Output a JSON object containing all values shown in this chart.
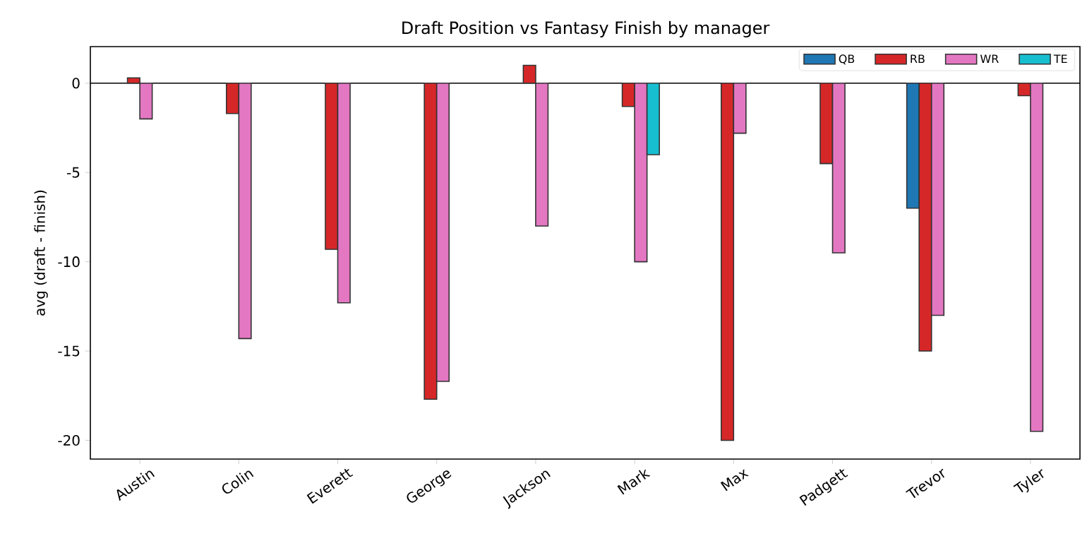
{
  "chart_data": {
    "type": "bar",
    "title": "Draft Position vs Fantasy Finish by manager",
    "ylabel": "avg (draft - finish)",
    "categories": [
      "Austin",
      "Colin",
      "Everett",
      "George",
      "Jackson",
      "Mark",
      "Max",
      "Padgett",
      "Trevor",
      "Tyler"
    ],
    "series": [
      {
        "name": "QB",
        "color": "#1f77b4",
        "values": [
          null,
          null,
          null,
          null,
          null,
          null,
          null,
          null,
          -7,
          null
        ]
      },
      {
        "name": "RB",
        "color": "#d62728",
        "values": [
          0.3,
          -1.7,
          -9.3,
          -17.7,
          1.0,
          -1.3,
          -20,
          -4.5,
          -15,
          -0.7
        ]
      },
      {
        "name": "WR",
        "color": "#e377c2",
        "values": [
          -2,
          -14.3,
          -12.3,
          -16.7,
          -8,
          -10,
          -2.8,
          -9.5,
          -13,
          -19.5
        ]
      },
      {
        "name": "TE",
        "color": "#17becf",
        "values": [
          null,
          null,
          null,
          null,
          null,
          -4,
          null,
          null,
          null,
          null
        ]
      }
    ],
    "ylim": [
      -21.05,
      2.05
    ],
    "yticks": [
      -20,
      -15,
      -10,
      -5,
      0
    ],
    "ref_lines": [
      {
        "axis": "y",
        "value": 0,
        "color": "#000000"
      }
    ],
    "grid": false,
    "legend": "top right"
  }
}
